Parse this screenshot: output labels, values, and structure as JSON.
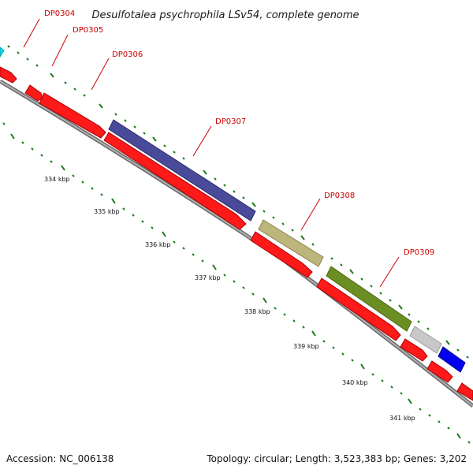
{
  "title": "Desulfotalea psychrophila LSv54, complete genome",
  "footer": {
    "accession": "Accession: NC_006138",
    "summary": "Topology: circular; Length: 3,523,383 bp; Genes: 3,202"
  },
  "gene_labels": [
    "DP0304",
    "DP0305",
    "DP0306",
    "DP0307",
    "DP0308",
    "DP0309"
  ],
  "scale_labels": [
    "334 kbp",
    "335 kbp",
    "336 kbp",
    "337 kbp",
    "338 kbp",
    "339 kbp",
    "340 kbp",
    "341 kbp"
  ],
  "colors": {
    "forward_red": "#ff0000",
    "backbone": "#8a8a8a",
    "tick": "#1a7a1a",
    "label_line": "#cc0000",
    "DP0307": "#4a4a9a",
    "DP0308": "#bdb67a",
    "DP0309": "#6b8e23",
    "gray_gene": "#c8c8c8",
    "blue_gene": "#0000ee",
    "cyan_gene": "#00e5ee"
  }
}
